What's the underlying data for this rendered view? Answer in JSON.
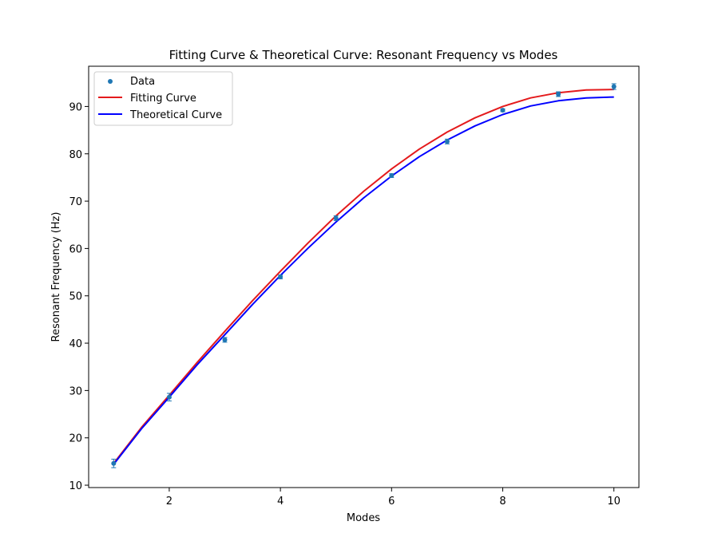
{
  "chart_data": {
    "type": "scatter",
    "title": "Fitting Curve & Theoretical Curve: Resonant Frequency vs Modes",
    "xlabel": "Modes",
    "ylabel": "Resonant Frequency (Hz)",
    "xlim": [
      0.55,
      10.45
    ],
    "ylim": [
      9.5,
      98.5
    ],
    "xticks": [
      2,
      4,
      6,
      8,
      10
    ],
    "yticks": [
      10,
      20,
      30,
      40,
      50,
      60,
      70,
      80,
      90
    ],
    "grid": false,
    "legend_position": "upper-left",
    "series": [
      {
        "name": "Data",
        "kind": "scatter-errorbar",
        "color": "#1f77b4",
        "x": [
          1,
          2,
          3,
          4,
          5,
          6,
          7,
          8,
          9,
          10
        ],
        "y": [
          14.6,
          28.6,
          40.7,
          54.0,
          66.4,
          75.4,
          82.6,
          89.2,
          92.6,
          94.2
        ],
        "yerr": [
          0.9,
          0.8,
          0.5,
          0.4,
          0.5,
          0.4,
          0.5,
          0.3,
          0.5,
          0.6
        ]
      },
      {
        "name": "Fitting Curve",
        "kind": "line",
        "color": "#e41a1c",
        "x": [
          1.0,
          1.5,
          2.0,
          2.5,
          3.0,
          3.5,
          4.0,
          4.5,
          5.0,
          5.5,
          6.0,
          6.5,
          7.0,
          7.5,
          8.0,
          8.5,
          9.0,
          9.5,
          10.0
        ],
        "y": [
          14.6,
          22.2,
          29.0,
          35.9,
          42.5,
          49.0,
          55.2,
          61.2,
          66.9,
          72.1,
          76.8,
          81.0,
          84.6,
          87.6,
          90.0,
          91.8,
          92.9,
          93.5,
          93.6
        ]
      },
      {
        "name": "Theoretical Curve",
        "kind": "line",
        "color": "#0000ff",
        "x": [
          1.0,
          1.5,
          2.0,
          2.5,
          3.0,
          3.5,
          4.0,
          4.5,
          5.0,
          5.5,
          6.0,
          6.5,
          7.0,
          7.5,
          8.0,
          8.5,
          9.0,
          9.5,
          10.0
        ],
        "y": [
          14.4,
          21.9,
          28.6,
          35.4,
          41.8,
          48.2,
          54.3,
          60.1,
          65.6,
          70.7,
          75.3,
          79.4,
          82.9,
          85.9,
          88.3,
          90.1,
          91.2,
          91.8,
          92.0
        ]
      }
    ]
  }
}
